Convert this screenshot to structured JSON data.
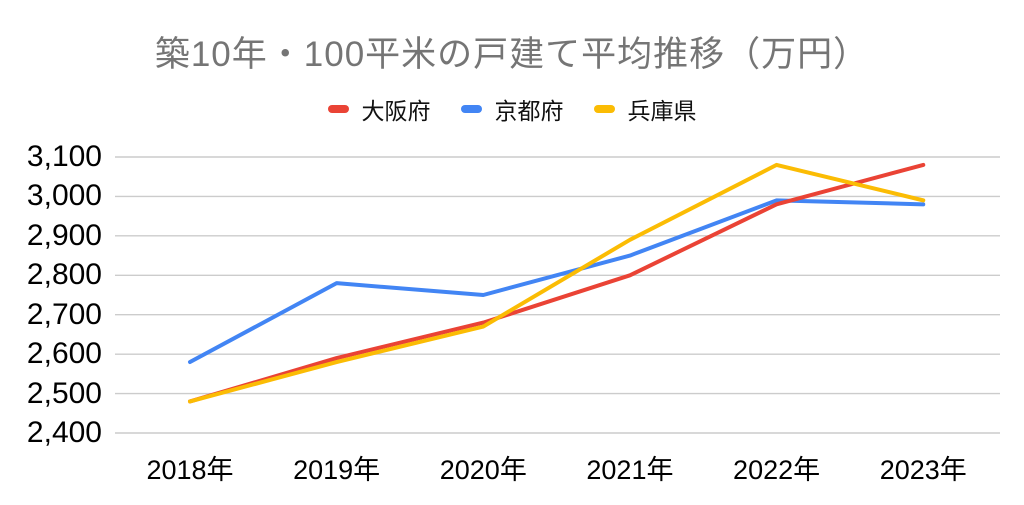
{
  "chart_data": {
    "type": "line",
    "title": "築10年・100平米の戸建て平均推移（万円）",
    "categories": [
      "2018年",
      "2019年",
      "2020年",
      "2021年",
      "2022年",
      "2023年"
    ],
    "series": [
      {
        "name": "大阪府",
        "color": "#EA4335",
        "values": [
          2480,
          2590,
          2680,
          2800,
          2980,
          3080
        ]
      },
      {
        "name": "京都府",
        "color": "#4285F4",
        "values": [
          2580,
          2780,
          2750,
          2850,
          2990,
          2980
        ]
      },
      {
        "name": "兵庫県",
        "color": "#FBBC04",
        "values": [
          2480,
          2580,
          2670,
          2890,
          3080,
          2990
        ]
      }
    ],
    "ylim": [
      2400,
      3100
    ],
    "y_tick_labels": [
      "3,100",
      "3,000",
      "2,900",
      "2,800",
      "2,700",
      "2,600",
      "2,500",
      "2,400"
    ],
    "xlabel": "",
    "ylabel": "",
    "grid": true,
    "legend_position": "top",
    "gridline_color": "#cccccc",
    "title_color": "#757575",
    "axis_text_color": "#000000",
    "background_color": "#ffffff"
  }
}
